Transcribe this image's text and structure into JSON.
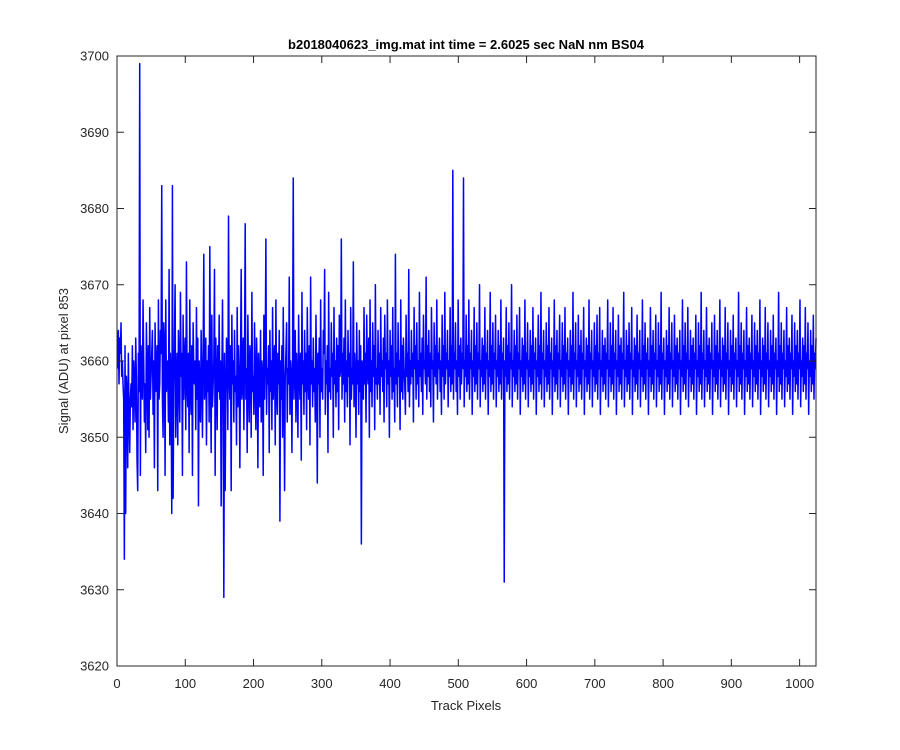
{
  "chart_data": {
    "type": "line",
    "title": "b2018040623_img.mat int time = 2.6025 sec  NaN nm BS04",
    "xlabel": "Track Pixels",
    "ylabel": "Signal (ADU) at pixel 853",
    "xlim": [
      0,
      1024
    ],
    "ylim": [
      3620,
      3700
    ],
    "xticks": [
      0,
      100,
      200,
      300,
      400,
      500,
      600,
      700,
      800,
      900,
      1000
    ],
    "yticks": [
      3620,
      3630,
      3640,
      3650,
      3660,
      3670,
      3680,
      3690,
      3700
    ],
    "grid": false,
    "box": true,
    "line_color": "#0000ff",
    "series": [
      {
        "x_start": 1,
        "x_step": 1,
        "x_end": 1024,
        "values": [
          3659,
          3664,
          3657,
          3663,
          3661,
          3665,
          3658,
          3660,
          3657,
          3655,
          3634,
          3662,
          3640,
          3658,
          3656,
          3646,
          3661,
          3653,
          3648,
          3655,
          3657,
          3654,
          3662,
          3651,
          3660,
          3658,
          3652,
          3663,
          3658,
          3647,
          3643,
          3661,
          3656,
          3699,
          3645,
          3662,
          3658,
          3655,
          3668,
          3660,
          3652,
          3657,
          3648,
          3665,
          3659,
          3651,
          3662,
          3650,
          3667,
          3655,
          3658,
          3661,
          3664,
          3653,
          3660,
          3646,
          3665,
          3656,
          3659,
          3662,
          3643,
          3668,
          3655,
          3657,
          3664,
          3661,
          3683,
          3655,
          3650,
          3665,
          3662,
          3645,
          3668,
          3656,
          3659,
          3660,
          3652,
          3672,
          3649,
          3661,
          3656,
          3640,
          3683,
          3642,
          3655,
          3663,
          3670,
          3650,
          3657,
          3661,
          3649,
          3664,
          3659,
          3652,
          3669,
          3658,
          3661,
          3645,
          3666,
          3655,
          3660,
          3663,
          3651,
          3673,
          3657,
          3654,
          3661,
          3648,
          3668,
          3656,
          3653,
          3662,
          3645,
          3665,
          3659,
          3657,
          3660,
          3651,
          3667,
          3655,
          3663,
          3641,
          3660,
          3657,
          3652,
          3664,
          3658,
          3650,
          3661,
          3674,
          3655,
          3657,
          3663,
          3649,
          3660,
          3656,
          3662,
          3652,
          3675,
          3658,
          3648,
          3666,
          3654,
          3657,
          3660,
          3672,
          3645,
          3663,
          3658,
          3651,
          3662,
          3656,
          3666,
          3655,
          3660,
          3641,
          3657,
          3668,
          3655,
          3629,
          3661,
          3643,
          3656,
          3663,
          3659,
          3651,
          3679,
          3658,
          3655,
          3662,
          3643,
          3666,
          3657,
          3660,
          3652,
          3664,
          3656,
          3658,
          3649,
          3667,
          3654,
          3662,
          3658,
          3646,
          3660,
          3672,
          3655,
          3657,
          3663,
          3651,
          3661,
          3678,
          3655,
          3659,
          3648,
          3666,
          3657,
          3652,
          3662,
          3660,
          3650,
          3669,
          3656,
          3658,
          3653,
          3665,
          3657,
          3651,
          3663,
          3659,
          3646,
          3661,
          3657,
          3654,
          3664,
          3652,
          3660,
          3658,
          3645,
          3666,
          3655,
          3661,
          3676,
          3653,
          3659,
          3657,
          3662,
          3648,
          3664,
          3656,
          3660,
          3651,
          3667,
          3655,
          3659,
          3662,
          3649,
          3668,
          3656,
          3653,
          3661,
          3657,
          3664,
          3639,
          3660,
          3655,
          3662,
          3650,
          3667,
          3656,
          3643,
          3658,
          3661,
          3665,
          3652,
          3659,
          3657,
          3671,
          3653,
          3660,
          3658,
          3648,
          3662,
          3684,
          3655,
          3659,
          3664,
          3652,
          3661,
          3657,
          3650,
          3666,
          3658,
          3655,
          3661,
          3647,
          3669,
          3657,
          3660,
          3653,
          3664,
          3656,
          3661,
          3651,
          3667,
          3658,
          3655,
          3662,
          3649,
          3671,
          3657,
          3660,
          3654,
          3663,
          3656,
          3659,
          3652,
          3666,
          3658,
          3644,
          3661,
          3657,
          3663,
          3650,
          3668,
          3656,
          3659,
          3655,
          3664,
          3661,
          3672,
          3653,
          3660,
          3657,
          3662,
          3648,
          3669,
          3656,
          3659,
          3655,
          3665,
          3658,
          3661,
          3650,
          3667,
          3657,
          3660,
          3654,
          3663,
          3656,
          3662,
          3651,
          3666,
          3658,
          3659,
          3676,
          3655,
          3661,
          3657,
          3663,
          3652,
          3668,
          3656,
          3660,
          3654,
          3664,
          3658,
          3661,
          3649,
          3667,
          3655,
          3659,
          3657,
          3673,
          3654,
          3661,
          3658,
          3650,
          3665,
          3657,
          3660,
          3653,
          3664,
          3656,
          3662,
          3636,
          3660,
          3658,
          3655,
          3667,
          3657,
          3661,
          3652,
          3666,
          3659,
          3657,
          3663,
          3650,
          3668,
          3656,
          3660,
          3654,
          3665,
          3658,
          3662,
          3651,
          3670,
          3657,
          3659,
          3655,
          3664,
          3657,
          3661,
          3653,
          3667,
          3658,
          3660,
          3656,
          3663,
          3652,
          3666,
          3659,
          3661,
          3654,
          3668,
          3657,
          3660,
          3650,
          3664,
          3658,
          3662,
          3655,
          3667,
          3656,
          3659,
          3652,
          3674,
          3657,
          3661,
          3654,
          3665,
          3658,
          3660,
          3651,
          3668,
          3656,
          3662,
          3655,
          3663,
          3659,
          3657,
          3653,
          3666,
          3658,
          3661,
          3656,
          3672,
          3654,
          3660,
          3657,
          3664,
          3658,
          3661,
          3652,
          3667,
          3659,
          3662,
          3655,
          3665,
          3657,
          3660,
          3654,
          3669,
          3658,
          3661,
          3656,
          3663,
          3653,
          3666,
          3659,
          3660,
          3657,
          3671,
          3655,
          3662,
          3658,
          3664,
          3656,
          3661,
          3654,
          3667,
          3659,
          3660,
          3652,
          3665,
          3658,
          3662,
          3657,
          3668,
          3655,
          3661,
          3659,
          3663,
          3656,
          3660,
          3653,
          3666,
          3658,
          3662,
          3655,
          3669,
          3657,
          3661,
          3659,
          3664,
          3654,
          3660,
          3658,
          3667,
          3656,
          3662,
          3657,
          3685,
          3655,
          3661,
          3659,
          3665,
          3656,
          3660,
          3653,
          3668,
          3658,
          3662,
          3655,
          3663,
          3657,
          3661,
          3659,
          3684,
          3654,
          3660,
          3658,
          3666,
          3656,
          3662,
          3657,
          3668,
          3655,
          3661,
          3659,
          3664,
          3653,
          3660,
          3658,
          3667,
          3656,
          3662,
          3657,
          3665,
          3655,
          3661,
          3659,
          3670,
          3654,
          3660,
          3658,
          3663,
          3656,
          3662,
          3657,
          3667,
          3655,
          3661,
          3659,
          3664,
          3653,
          3660,
          3658,
          3669,
          3656,
          3662,
          3657,
          3665,
          3655,
          3661,
          3659,
          3666,
          3654,
          3660,
          3658,
          3664,
          3656,
          3662,
          3657,
          3668,
          3655,
          3661,
          3659,
          3663,
          3631,
          3660,
          3658,
          3667,
          3656,
          3662,
          3657,
          3665,
          3655,
          3661,
          3659,
          3670,
          3654,
          3660,
          3658,
          3664,
          3656,
          3662,
          3657,
          3666,
          3655,
          3661,
          3659,
          3667,
          3653,
          3660,
          3658,
          3663,
          3656,
          3662,
          3657,
          3668,
          3655,
          3661,
          3659,
          3665,
          3654,
          3660,
          3658,
          3664,
          3656,
          3662,
          3657,
          3667,
          3655,
          3661,
          3659,
          3663,
          3653,
          3660,
          3658,
          3666,
          3656,
          3662,
          3657,
          3669,
          3655,
          3661,
          3659,
          3664,
          3654,
          3660,
          3658,
          3665,
          3656,
          3662,
          3657,
          3667,
          3655,
          3661,
          3659,
          3663,
          3653,
          3660,
          3658,
          3668,
          3656,
          3662,
          3657,
          3664,
          3655,
          3661,
          3659,
          3666,
          3654,
          3660,
          3658,
          3665,
          3656,
          3662,
          3657,
          3667,
          3655,
          3661,
          3659,
          3663,
          3653,
          3660,
          3658,
          3664,
          3656,
          3662,
          3657,
          3669,
          3655,
          3661,
          3659,
          3665,
          3654,
          3660,
          3658,
          3666,
          3656,
          3662,
          3657,
          3664,
          3655,
          3661,
          3659,
          3667,
          3653,
          3660,
          3658,
          3663,
          3656,
          3662,
          3657,
          3668,
          3655,
          3661,
          3659,
          3664,
          3654,
          3660,
          3658,
          3665,
          3656,
          3662,
          3657,
          3666,
          3655,
          3661,
          3659,
          3667,
          3653,
          3660,
          3658,
          3664,
          3656,
          3662,
          3657,
          3663,
          3655,
          3661,
          3659,
          3668,
          3654,
          3660,
          3658,
          3665,
          3656,
          3662,
          3657,
          3667,
          3655,
          3661,
          3659,
          3664,
          3653,
          3660,
          3658,
          3666,
          3656,
          3662,
          3657,
          3663,
          3655,
          3661,
          3659,
          3669,
          3654,
          3660,
          3658,
          3664,
          3656,
          3662,
          3657,
          3665,
          3655,
          3661,
          3659,
          3667,
          3653,
          3660,
          3658,
          3663,
          3656,
          3662,
          3657,
          3666,
          3655,
          3661,
          3659,
          3664,
          3654,
          3660,
          3658,
          3668,
          3656,
          3662,
          3657,
          3665,
          3655,
          3661,
          3659,
          3663,
          3653,
          3660,
          3658,
          3667,
          3656,
          3662,
          3657,
          3664,
          3655,
          3661,
          3659,
          3666,
          3654,
          3660,
          3658,
          3665,
          3656,
          3662,
          3657,
          3669,
          3655,
          3661,
          3659,
          3663,
          3653,
          3660,
          3658,
          3664,
          3656,
          3662,
          3657,
          3667,
          3655,
          3661,
          3659,
          3665,
          3654,
          3660,
          3658,
          3666,
          3656,
          3662,
          3657,
          3663,
          3655,
          3661,
          3659,
          3664,
          3653,
          3660,
          3658,
          3668,
          3656,
          3662,
          3657,
          3665,
          3655,
          3661,
          3659,
          3667,
          3654,
          3660,
          3658,
          3664,
          3656,
          3662,
          3657,
          3663,
          3655,
          3661,
          3659,
          3666,
          3653,
          3660,
          3658,
          3665,
          3656,
          3662,
          3657,
          3669,
          3655,
          3661,
          3659,
          3664,
          3654,
          3660,
          3658,
          3667,
          3656,
          3662,
          3657,
          3663,
          3655,
          3661,
          3659,
          3665,
          3653,
          3660,
          3658,
          3666,
          3656,
          3662,
          3657,
          3664,
          3655,
          3661,
          3659,
          3668,
          3654,
          3660,
          3658,
          3663,
          3656,
          3662,
          3657,
          3667,
          3655,
          3661,
          3659,
          3665,
          3653,
          3660,
          3658,
          3664,
          3656,
          3662,
          3657,
          3666,
          3655,
          3661,
          3659,
          3663,
          3654,
          3660,
          3658,
          3669,
          3656,
          3662,
          3657,
          3665,
          3655,
          3661,
          3659,
          3664,
          3653,
          3660,
          3658,
          3667,
          3656,
          3662,
          3657,
          3663,
          3655,
          3661,
          3659,
          3666,
          3654,
          3660,
          3658,
          3665,
          3656,
          3662,
          3657,
          3664,
          3655,
          3661,
          3659,
          3668,
          3653,
          3660,
          3658,
          3663,
          3656,
          3662,
          3657,
          3667,
          3655,
          3661,
          3659,
          3665,
          3654,
          3660,
          3658,
          3664,
          3656,
          3662,
          3657,
          3666,
          3655,
          3661,
          3659,
          3663,
          3653,
          3660,
          3658,
          3669,
          3656,
          3662,
          3657,
          3665,
          3655,
          3661,
          3659,
          3664,
          3654,
          3660,
          3658,
          3667,
          3656,
          3662,
          3657,
          3663,
          3655,
          3661,
          3659,
          3666,
          3653,
          3660,
          3658,
          3665,
          3656,
          3662,
          3657,
          3664,
          3655,
          3661,
          3659,
          3668,
          3654,
          3660,
          3658,
          3663,
          3656,
          3662,
          3657,
          3667,
          3655,
          3661,
          3659,
          3665,
          3653,
          3660,
          3658,
          3664,
          3656,
          3662,
          3657,
          3666,
          3655,
          3661,
          3659,
          3663
        ]
      }
    ]
  }
}
